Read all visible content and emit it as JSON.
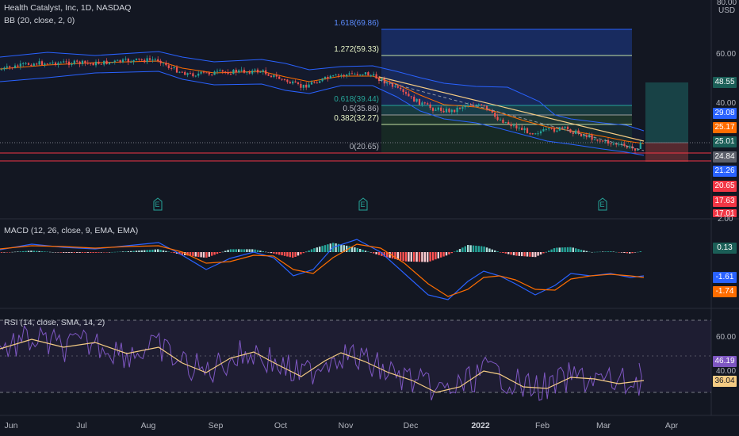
{
  "header": {
    "symbol_line": "Health Catalyst, Inc, 1D, NASDAQ",
    "bb_line": "BB (20, close, 2, 0)",
    "macd_line": "MACD (12, 26, close, 9, EMA, EMA)",
    "rsi_line": "RSI (14, close, SMA, 14, 2)",
    "currency": "USD"
  },
  "colors": {
    "background": "#131722",
    "bullish": "#26a69a",
    "bearish": "#ef5350",
    "bb_band": "#2962ff",
    "bb_basis": "#ff6d00",
    "macd": "#2962ff",
    "signal": "#ff6d00",
    "rsi": "#7e57c2",
    "rsi_ma": "#f5cc84",
    "support_line": "#f23645",
    "trend_line": "#f5cc84"
  },
  "price_axis": {
    "ticks": [
      "80.00",
      "60.00",
      "40.00"
    ],
    "tags": [
      {
        "value": "48.55",
        "color": "#1b5e57"
      },
      {
        "value": "29.08",
        "color": "#2962ff"
      },
      {
        "value": "25.17",
        "color": "#ff6d00"
      },
      {
        "value": "25.01",
        "color": "#1b5e57"
      },
      {
        "value": "24.84",
        "color": "#5d606b"
      },
      {
        "value": "21.26",
        "color": "#2962ff"
      },
      {
        "value": "20.65",
        "color": "#f23645"
      },
      {
        "value": "17.63",
        "color": "#f23645"
      },
      {
        "value": "17.01",
        "color": "#f23645"
      }
    ]
  },
  "macd_axis": {
    "ticks": [
      "2.00"
    ],
    "tags": [
      {
        "value": "0.13",
        "color": "#1b5e57"
      },
      {
        "value": "-1.61",
        "color": "#2962ff"
      },
      {
        "value": "-1.74",
        "color": "#ff6d00"
      }
    ]
  },
  "rsi_axis": {
    "ticks": [
      "60.00",
      "40.00"
    ],
    "tags": [
      {
        "value": "46.19",
        "color": "#7e57c2"
      },
      {
        "value": "36.04",
        "color": "#f5cc84"
      }
    ]
  },
  "fib_levels": [
    {
      "label": "1.618(69.86)",
      "color": "#2962ff"
    },
    {
      "label": "1.272(59.33)",
      "color": "#e8f5c8"
    },
    {
      "label": "0.618(39.44)",
      "color": "#26a69a"
    },
    {
      "label": "0.5(35.86)",
      "color": "#b2b5be"
    },
    {
      "label": "0.382(32.27)",
      "color": "#e8f5c8"
    },
    {
      "label": "0(20.65)",
      "color": "#b2b5be"
    }
  ],
  "earnings_markers": [
    "E",
    "E",
    "E"
  ],
  "time_axis": [
    "Jun",
    "Jul",
    "Aug",
    "Sep",
    "Oct",
    "Nov",
    "Dec",
    "2022",
    "Feb",
    "Mar",
    "Apr"
  ]
}
